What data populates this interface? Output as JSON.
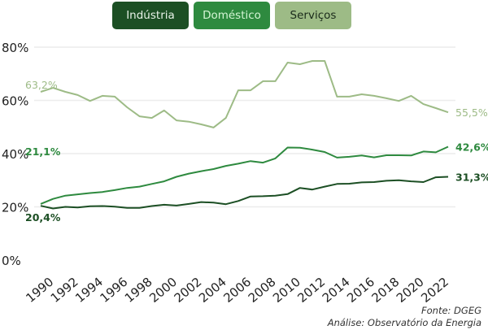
{
  "chart_data": {
    "type": "line",
    "x": [
      1990,
      1991,
      1992,
      1993,
      1994,
      1995,
      1996,
      1997,
      1998,
      1999,
      2000,
      2001,
      2002,
      2003,
      2004,
      2005,
      2006,
      2007,
      2008,
      2009,
      2010,
      2011,
      2012,
      2013,
      2014,
      2015,
      2016,
      2017,
      2018,
      2019,
      2020,
      2021,
      2022,
      2023
    ],
    "xticks": [
      "1990",
      "1992",
      "1994",
      "1996",
      "1998",
      "2000",
      "2002",
      "2004",
      "2006",
      "2008",
      "2010",
      "2012",
      "2014",
      "2016",
      "2018",
      "2020",
      "2022"
    ],
    "yticks": [
      "0%",
      "20%",
      "40%",
      "60%",
      "80%"
    ],
    "ylim": [
      0,
      80
    ],
    "grid": "horizontal",
    "legend_placement": "top",
    "series": [
      {
        "name": "Indústria",
        "color": "#1c4f24",
        "text_color": "#e8f2e8",
        "start_label": "20,4%",
        "end_label": "31,3%",
        "values": [
          20.4,
          19.4,
          20.0,
          19.8,
          20.2,
          20.3,
          20.1,
          19.6,
          19.6,
          20.3,
          20.8,
          20.5,
          21.1,
          21.8,
          21.6,
          21.0,
          22.2,
          23.9,
          24.0,
          24.2,
          24.8,
          27.1,
          26.5,
          27.6,
          28.6,
          28.7,
          29.2,
          29.3,
          29.8,
          30.0,
          29.6,
          29.3,
          31.1,
          31.3
        ]
      },
      {
        "name": "Doméstico",
        "color": "#2e8a3f",
        "text_color": "#d4f5d4",
        "start_label": "21,1%",
        "end_label": "42,6%",
        "values": [
          21.1,
          23.0,
          24.2,
          24.7,
          25.2,
          25.6,
          26.3,
          27.1,
          27.6,
          28.6,
          29.6,
          31.3,
          32.5,
          33.4,
          34.2,
          35.4,
          36.2,
          37.2,
          36.6,
          38.2,
          42.3,
          42.2,
          41.5,
          40.6,
          38.5,
          38.8,
          39.3,
          38.6,
          39.4,
          39.4,
          39.3,
          40.8,
          40.5,
          42.6
        ]
      },
      {
        "name": "Serviços",
        "color": "#9dbb86",
        "text_color": "#1a2a1a",
        "start_label": "63,2%",
        "end_label": "55,5%",
        "values": [
          63.2,
          64.7,
          63.2,
          62.0,
          59.8,
          61.7,
          61.4,
          57.4,
          54.0,
          53.4,
          56.2,
          52.5,
          52.0,
          51.0,
          49.8,
          53.4,
          63.8,
          63.8,
          67.2,
          67.2,
          74.2,
          73.6,
          74.8,
          74.8,
          61.4,
          61.4,
          62.3,
          61.7,
          60.8,
          59.8,
          61.7,
          58.6,
          57.1,
          55.5
        ]
      }
    ]
  },
  "source": {
    "line1": "Fonte: DGEG",
    "line2": "Análise: Observatório da Energia"
  }
}
